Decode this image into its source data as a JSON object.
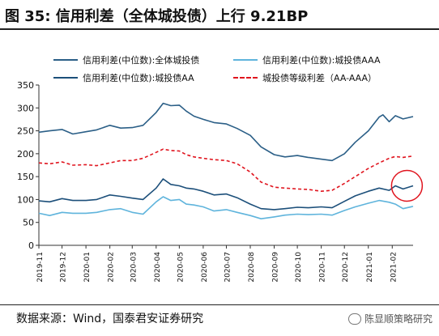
{
  "title": "图 35:  信用利差（全体城投债）上行 9.21BP",
  "source": "数据来源：Wind，国泰君安证券研究",
  "watermark": "陈显顺策略研究",
  "colors": {
    "all": "#2b5f87",
    "aaa": "#5fb4dc",
    "aa": "#1c4f7a",
    "spread": "#e0141e",
    "highlight": "#e0141e"
  },
  "chart_data": {
    "type": "line",
    "title": "",
    "xlabel": "",
    "ylabel": "",
    "ylim": [
      0,
      350
    ],
    "yticks": [
      0,
      50,
      100,
      150,
      200,
      250,
      300,
      350
    ],
    "x_ticks": [
      "2019-11",
      "2019-12",
      "2020-01",
      "2020-02",
      "2020-03",
      "2020-04",
      "2020-05",
      "2020-06",
      "2020-07",
      "2020-08",
      "2020-09",
      "2020-10",
      "2020-11",
      "2020-12",
      "2021-01",
      "2021-02"
    ],
    "x_range": [
      "2019-11-01",
      "2021-02-28"
    ],
    "grid": false,
    "legend_position": "top",
    "annotations": [
      {
        "type": "circle",
        "x": "2021-02-20",
        "y": 130,
        "color": "#e0141e"
      }
    ],
    "series": [
      {
        "name": "信用利差(中位数):全体城投债",
        "color": "#2b5f87",
        "style": "solid",
        "points": [
          [
            "2019-11-01",
            247
          ],
          [
            "2019-11-15",
            250
          ],
          [
            "2019-12-01",
            253
          ],
          [
            "2019-12-15",
            243
          ],
          [
            "2020-01-01",
            248
          ],
          [
            "2020-01-15",
            252
          ],
          [
            "2020-02-01",
            262
          ],
          [
            "2020-02-15",
            256
          ],
          [
            "2020-03-01",
            257
          ],
          [
            "2020-03-15",
            262
          ],
          [
            "2020-04-01",
            290
          ],
          [
            "2020-04-10",
            310
          ],
          [
            "2020-04-20",
            305
          ],
          [
            "2020-05-01",
            306
          ],
          [
            "2020-05-10",
            293
          ],
          [
            "2020-05-20",
            282
          ],
          [
            "2020-06-01",
            275
          ],
          [
            "2020-06-15",
            268
          ],
          [
            "2020-07-01",
            265
          ],
          [
            "2020-07-15",
            255
          ],
          [
            "2020-08-01",
            240
          ],
          [
            "2020-08-15",
            215
          ],
          [
            "2020-09-01",
            198
          ],
          [
            "2020-09-15",
            193
          ],
          [
            "2020-10-01",
            196
          ],
          [
            "2020-10-15",
            192
          ],
          [
            "2020-11-01",
            188
          ],
          [
            "2020-11-15",
            185
          ],
          [
            "2020-12-01",
            200
          ],
          [
            "2020-12-15",
            225
          ],
          [
            "2021-01-01",
            250
          ],
          [
            "2021-01-15",
            280
          ],
          [
            "2021-01-20",
            285
          ],
          [
            "2021-01-28",
            270
          ],
          [
            "2021-02-05",
            283
          ],
          [
            "2021-02-15",
            276
          ],
          [
            "2021-02-28",
            281
          ]
        ]
      },
      {
        "name": "信用利差(中位数):城投债AAA",
        "color": "#5fb4dc",
        "style": "solid",
        "points": [
          [
            "2019-11-01",
            70
          ],
          [
            "2019-11-15",
            65
          ],
          [
            "2019-12-01",
            72
          ],
          [
            "2019-12-15",
            70
          ],
          [
            "2020-01-01",
            70
          ],
          [
            "2020-01-15",
            72
          ],
          [
            "2020-02-01",
            78
          ],
          [
            "2020-02-15",
            80
          ],
          [
            "2020-03-01",
            72
          ],
          [
            "2020-03-15",
            68
          ],
          [
            "2020-04-01",
            95
          ],
          [
            "2020-04-10",
            106
          ],
          [
            "2020-04-20",
            98
          ],
          [
            "2020-05-01",
            100
          ],
          [
            "2020-05-10",
            90
          ],
          [
            "2020-05-20",
            88
          ],
          [
            "2020-06-01",
            84
          ],
          [
            "2020-06-15",
            75
          ],
          [
            "2020-07-01",
            78
          ],
          [
            "2020-07-15",
            72
          ],
          [
            "2020-08-01",
            65
          ],
          [
            "2020-08-15",
            58
          ],
          [
            "2020-09-01",
            62
          ],
          [
            "2020-09-15",
            66
          ],
          [
            "2020-10-01",
            68
          ],
          [
            "2020-10-15",
            67
          ],
          [
            "2020-11-01",
            68
          ],
          [
            "2020-11-15",
            66
          ],
          [
            "2020-12-01",
            76
          ],
          [
            "2020-12-15",
            84
          ],
          [
            "2021-01-01",
            92
          ],
          [
            "2021-01-15",
            98
          ],
          [
            "2021-01-28",
            94
          ],
          [
            "2021-02-05",
            90
          ],
          [
            "2021-02-15",
            80
          ],
          [
            "2021-02-28",
            85
          ]
        ]
      },
      {
        "name": "信用利差(中位数):城投债AA",
        "color": "#1c4f7a",
        "style": "solid",
        "points": [
          [
            "2019-11-01",
            97
          ],
          [
            "2019-11-15",
            95
          ],
          [
            "2019-12-01",
            102
          ],
          [
            "2019-12-15",
            98
          ],
          [
            "2020-01-01",
            98
          ],
          [
            "2020-01-15",
            100
          ],
          [
            "2020-02-01",
            110
          ],
          [
            "2020-02-15",
            107
          ],
          [
            "2020-03-01",
            103
          ],
          [
            "2020-03-15",
            100
          ],
          [
            "2020-04-01",
            125
          ],
          [
            "2020-04-10",
            145
          ],
          [
            "2020-04-20",
            133
          ],
          [
            "2020-05-01",
            130
          ],
          [
            "2020-05-10",
            125
          ],
          [
            "2020-05-20",
            123
          ],
          [
            "2020-06-01",
            118
          ],
          [
            "2020-06-15",
            110
          ],
          [
            "2020-07-01",
            112
          ],
          [
            "2020-07-15",
            104
          ],
          [
            "2020-08-01",
            90
          ],
          [
            "2020-08-15",
            80
          ],
          [
            "2020-09-01",
            78
          ],
          [
            "2020-09-15",
            80
          ],
          [
            "2020-10-01",
            83
          ],
          [
            "2020-10-15",
            82
          ],
          [
            "2020-11-01",
            84
          ],
          [
            "2020-11-15",
            82
          ],
          [
            "2020-12-01",
            96
          ],
          [
            "2020-12-15",
            108
          ],
          [
            "2021-01-01",
            118
          ],
          [
            "2021-01-15",
            125
          ],
          [
            "2021-01-28",
            120
          ],
          [
            "2021-02-05",
            130
          ],
          [
            "2021-02-15",
            123
          ],
          [
            "2021-02-28",
            130
          ]
        ]
      },
      {
        "name": "城投债等级利差（AA-AAA）",
        "color": "#e0141e",
        "style": "dashed",
        "points": [
          [
            "2019-11-01",
            180
          ],
          [
            "2019-11-15",
            178
          ],
          [
            "2019-12-01",
            182
          ],
          [
            "2019-12-15",
            175
          ],
          [
            "2020-01-01",
            176
          ],
          [
            "2020-01-15",
            174
          ],
          [
            "2020-02-01",
            180
          ],
          [
            "2020-02-15",
            185
          ],
          [
            "2020-03-01",
            185
          ],
          [
            "2020-03-15",
            190
          ],
          [
            "2020-04-01",
            203
          ],
          [
            "2020-04-10",
            210
          ],
          [
            "2020-04-20",
            207
          ],
          [
            "2020-05-01",
            206
          ],
          [
            "2020-05-10",
            198
          ],
          [
            "2020-05-20",
            193
          ],
          [
            "2020-06-01",
            190
          ],
          [
            "2020-06-15",
            187
          ],
          [
            "2020-07-01",
            185
          ],
          [
            "2020-07-15",
            178
          ],
          [
            "2020-08-01",
            160
          ],
          [
            "2020-08-15",
            138
          ],
          [
            "2020-09-01",
            127
          ],
          [
            "2020-09-15",
            125
          ],
          [
            "2020-10-01",
            123
          ],
          [
            "2020-10-15",
            122
          ],
          [
            "2020-11-01",
            118
          ],
          [
            "2020-11-15",
            120
          ],
          [
            "2020-12-01",
            135
          ],
          [
            "2020-12-15",
            150
          ],
          [
            "2021-01-01",
            168
          ],
          [
            "2021-01-15",
            180
          ],
          [
            "2021-01-28",
            190
          ],
          [
            "2021-02-05",
            194
          ],
          [
            "2021-02-15",
            192
          ],
          [
            "2021-02-28",
            195
          ]
        ]
      }
    ]
  }
}
